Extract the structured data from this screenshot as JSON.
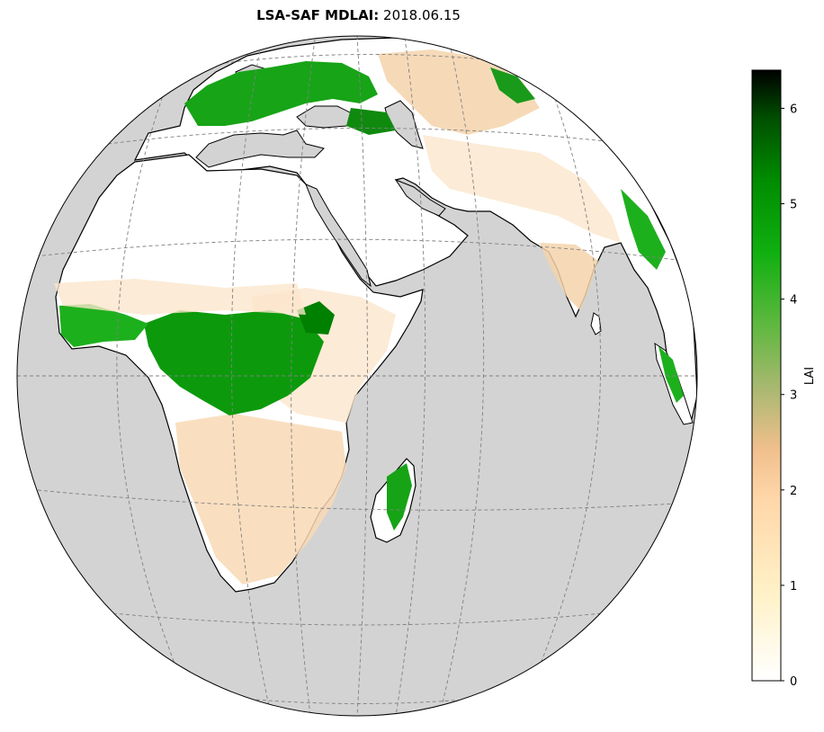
{
  "title": {
    "product": "LSA-SAF MDLAI",
    "separator": ":",
    "date": "2018.06.15"
  },
  "colorbar": {
    "label": "LAI",
    "ticks": [
      "0",
      "1",
      "2",
      "3",
      "4",
      "5",
      "6"
    ],
    "min": 0,
    "max": 6.4,
    "colors": [
      "#ffffff",
      "#fff2c8",
      "#ffd6a8",
      "#f0bf8c",
      "#78b84a",
      "#10b010",
      "#008c00",
      "#000000"
    ]
  },
  "map": {
    "projection": "orthographic",
    "ocean_color": "#d3d3d3",
    "land_color": "#ffffff",
    "coastline_color": "#000000",
    "gridline_color": "#808080"
  }
}
